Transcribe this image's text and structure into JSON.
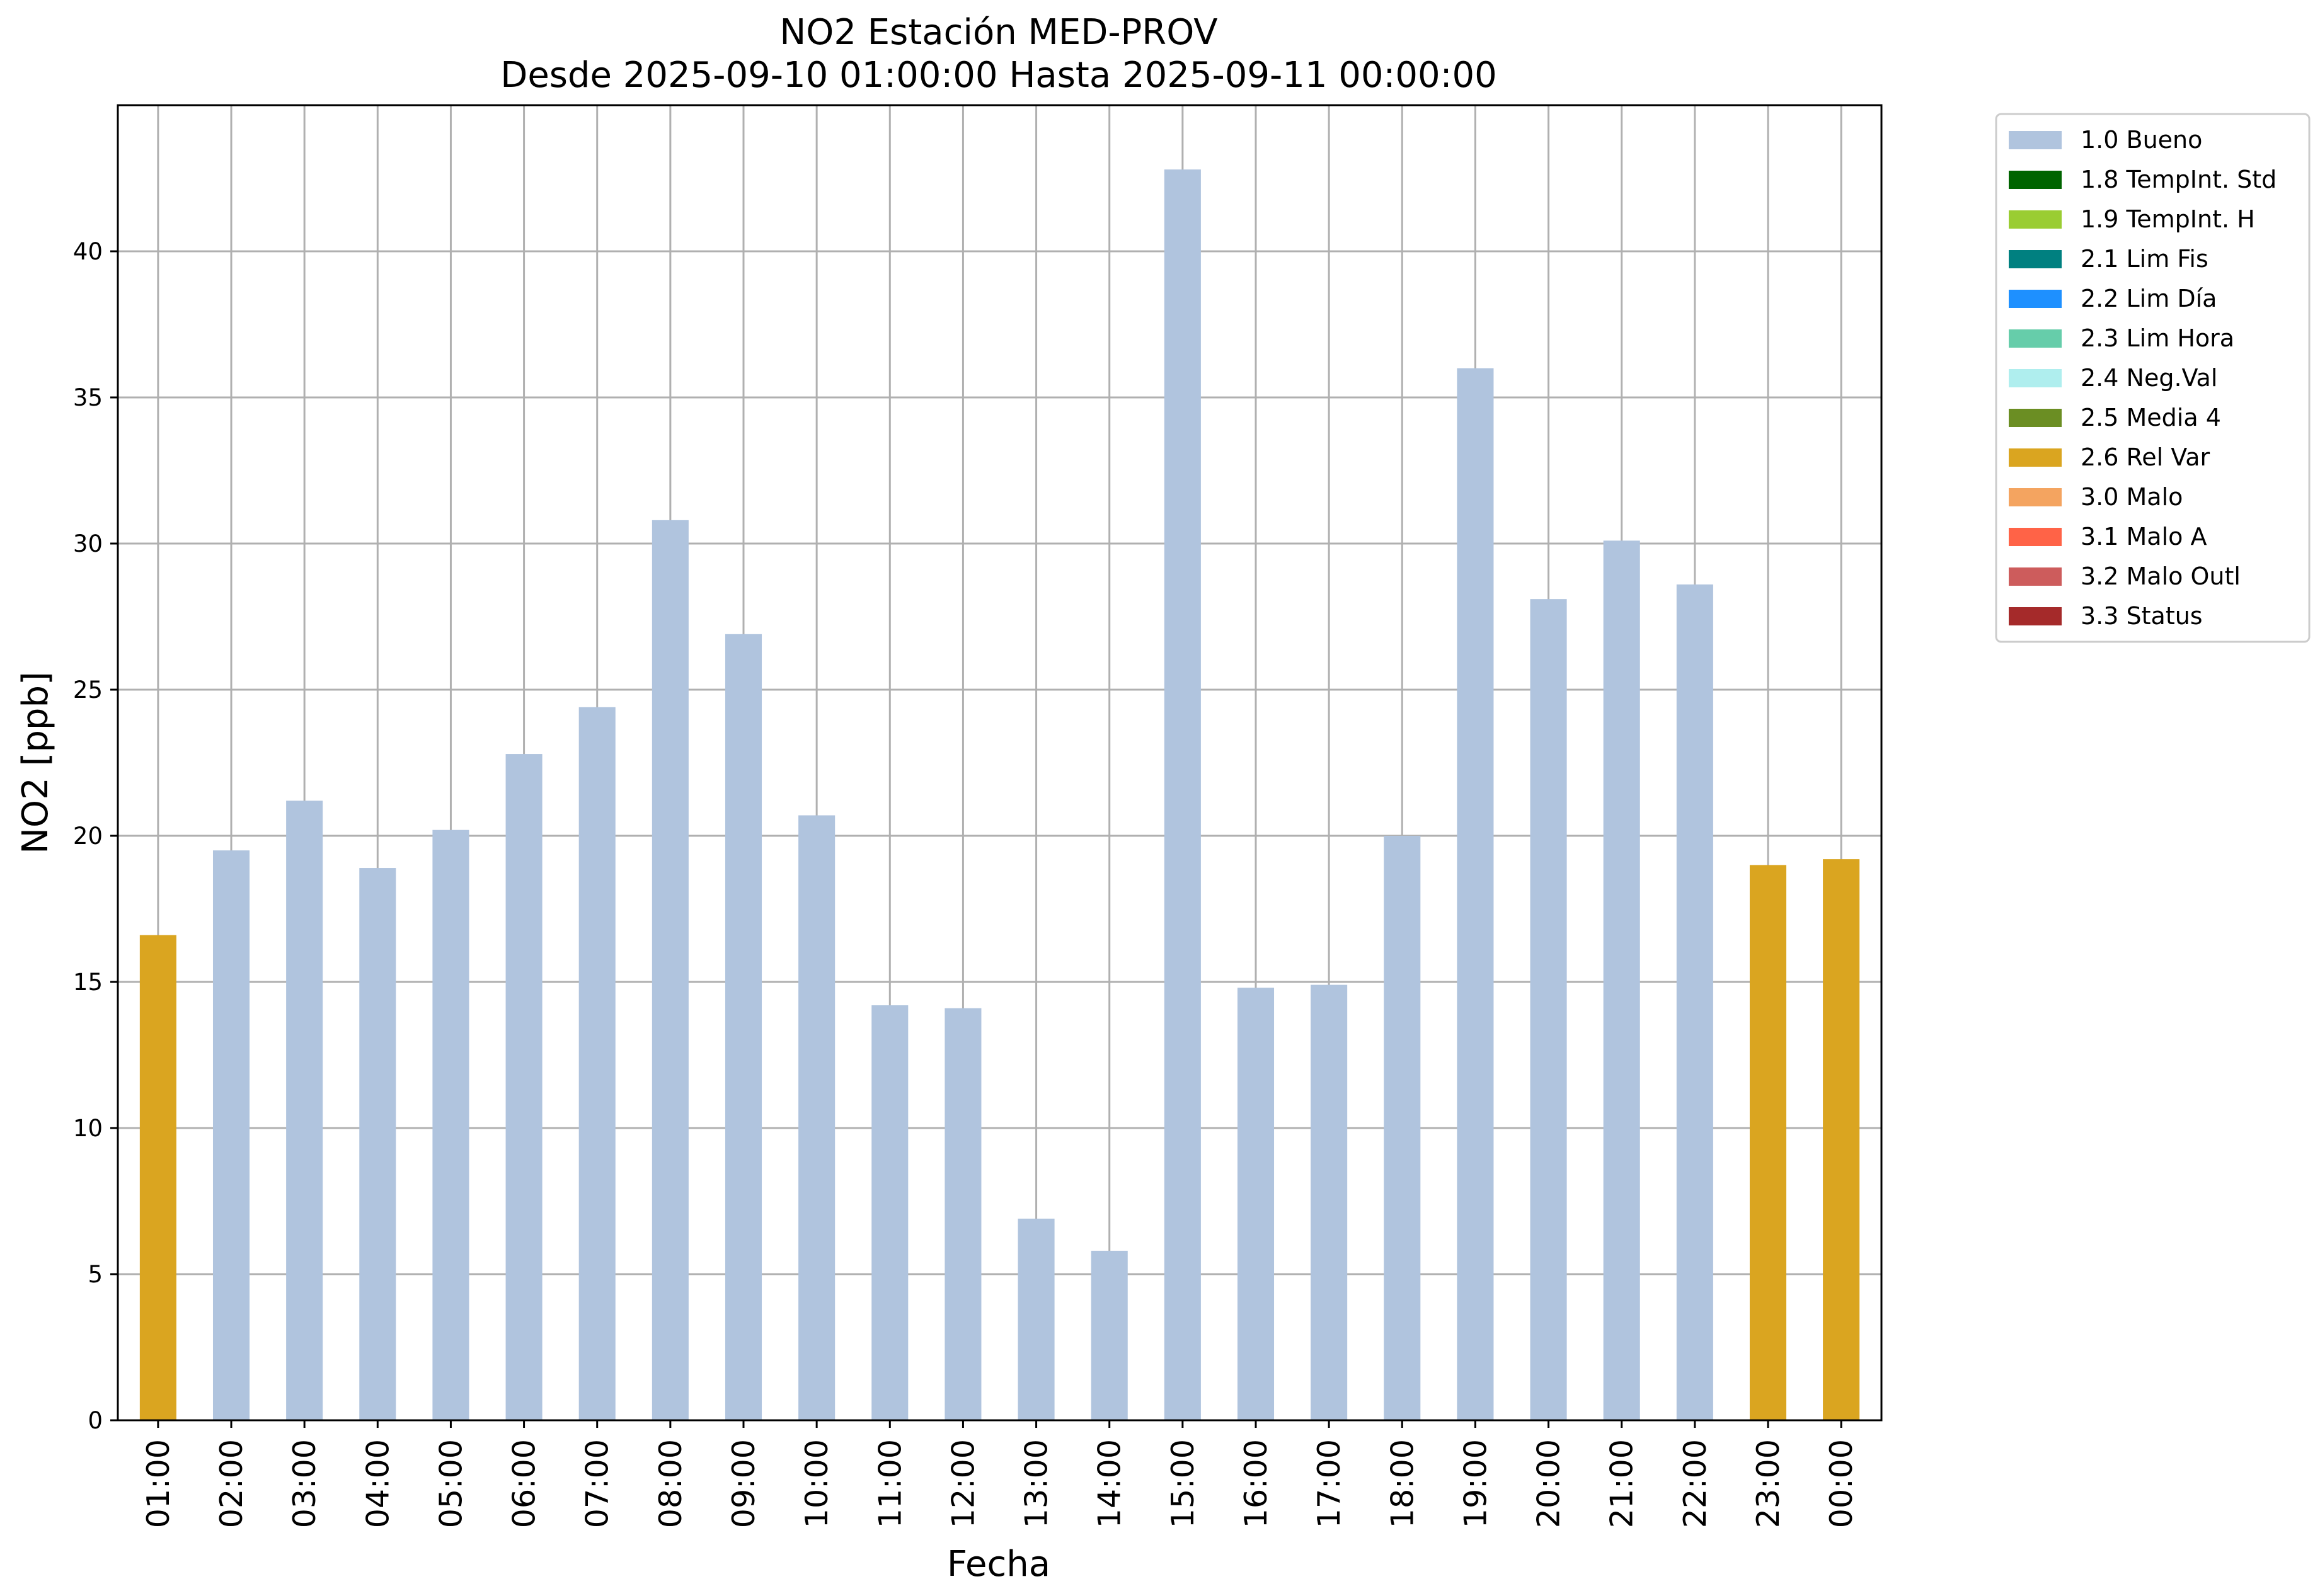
{
  "chart_data": {
    "type": "bar",
    "title": "NO2 Estación MED-PROV",
    "subtitle": "Desde 2025-09-10 01:00:00 Hasta 2025-09-11 00:00:00",
    "xlabel": "Fecha",
    "ylabel": "NO2 [ppb]",
    "ylim": [
      0,
      45
    ],
    "yticks": [
      "0",
      "5",
      "10",
      "15",
      "20",
      "25",
      "30",
      "35",
      "40"
    ],
    "grid": true,
    "legend_position": "outside top-right",
    "categories": [
      "01:00",
      "02:00",
      "03:00",
      "04:00",
      "05:00",
      "06:00",
      "07:00",
      "08:00",
      "09:00",
      "10:00",
      "11:00",
      "12:00",
      "13:00",
      "14:00",
      "15:00",
      "16:00",
      "17:00",
      "18:00",
      "19:00",
      "20:00",
      "21:00",
      "22:00",
      "23:00",
      "00:00"
    ],
    "values": [
      16.6,
      19.5,
      21.2,
      18.9,
      20.2,
      22.8,
      24.4,
      30.8,
      26.9,
      20.7,
      14.2,
      14.1,
      6.9,
      5.8,
      42.8,
      14.8,
      14.9,
      20.0,
      36.0,
      28.1,
      30.1,
      28.6,
      19.0,
      19.2
    ],
    "flags": [
      "2.6 Rel Var",
      "1.0 Bueno",
      "1.0 Bueno",
      "1.0 Bueno",
      "1.0 Bueno",
      "1.0 Bueno",
      "1.0 Bueno",
      "1.0 Bueno",
      "1.0 Bueno",
      "1.0 Bueno",
      "1.0 Bueno",
      "1.0 Bueno",
      "1.0 Bueno",
      "1.0 Bueno",
      "1.0 Bueno",
      "1.0 Bueno",
      "1.0 Bueno",
      "1.0 Bueno",
      "1.0 Bueno",
      "1.0 Bueno",
      "1.0 Bueno",
      "1.0 Bueno",
      "2.6 Rel Var",
      "2.6 Rel Var"
    ],
    "legend": [
      {
        "label": "1.0 Bueno",
        "color": "#b0c4de"
      },
      {
        "label": "1.8 TempInt. Std",
        "color": "#006400"
      },
      {
        "label": "1.9 TempInt. H",
        "color": "#9acd32"
      },
      {
        "label": "2.1 Lim Fis",
        "color": "#008080"
      },
      {
        "label": "2.2 Lim Día",
        "color": "#1e90ff"
      },
      {
        "label": "2.3 Lim Hora",
        "color": "#66cdaa"
      },
      {
        "label": "2.4 Neg.Val",
        "color": "#afeeee"
      },
      {
        "label": "2.5 Media 4",
        "color": "#6b8e23"
      },
      {
        "label": "2.6 Rel Var",
        "color": "#daa520"
      },
      {
        "label": "3.0 Malo",
        "color": "#f4a460"
      },
      {
        "label": "3.1 Malo A",
        "color": "#ff6347"
      },
      {
        "label": "3.2 Malo Outl",
        "color": "#cd5c5c"
      },
      {
        "label": "3.3 Status",
        "color": "#a52a2a"
      }
    ]
  }
}
